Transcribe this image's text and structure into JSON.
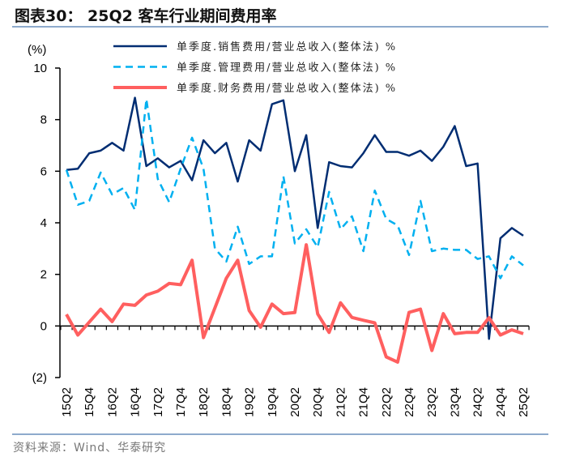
{
  "title": "图表30：  25Q2 客车行业期间费用率",
  "source": "资料来源：Wind、华泰研究",
  "colors": {
    "rule": "#8eaacc",
    "selling": "#002d72",
    "admin": "#00b0f0",
    "financial": "#ff5f5f"
  },
  "chart_data": {
    "type": "line",
    "title": "25Q2 客车行业期间费用率",
    "ylabel": "(%)",
    "ylim": [
      -2,
      10
    ],
    "yticks": [
      10,
      8,
      6,
      4,
      2,
      0,
      -2
    ],
    "ytick_labels": [
      "10",
      "8",
      "6",
      "4",
      "2",
      "0",
      "(2)"
    ],
    "grid": false,
    "legend_position": "top",
    "x": [
      "15Q2",
      "15Q3",
      "15Q4",
      "16Q1",
      "16Q2",
      "16Q3",
      "16Q4",
      "17Q1",
      "17Q2",
      "17Q3",
      "17Q4",
      "18Q1",
      "18Q2",
      "18Q3",
      "18Q4",
      "19Q1",
      "19Q2",
      "19Q3",
      "19Q4",
      "20Q1",
      "20Q2",
      "20Q3",
      "20Q4",
      "21Q1",
      "21Q2",
      "21Q3",
      "21Q4",
      "22Q1",
      "22Q2",
      "22Q3",
      "22Q4",
      "23Q1",
      "23Q2",
      "23Q3",
      "23Q4",
      "24Q1",
      "24Q2",
      "24Q3",
      "24Q4",
      "25Q1",
      "25Q2"
    ],
    "xtick_labels": [
      "15Q2",
      "15Q4",
      "16Q2",
      "16Q4",
      "17Q2",
      "17Q4",
      "18Q2",
      "18Q4",
      "19Q2",
      "19Q4",
      "20Q2",
      "20Q4",
      "21Q2",
      "21Q4",
      "22Q2",
      "22Q4",
      "23Q2",
      "23Q4",
      "24Q2",
      "24Q4",
      "25Q2"
    ],
    "series": [
      {
        "name": "单季度.销售费用/营业总收入(整体法) %",
        "style": "solid",
        "values": [
          6.05,
          6.1,
          6.7,
          6.8,
          7.1,
          6.8,
          8.85,
          6.2,
          6.5,
          6.15,
          6.4,
          5.65,
          7.2,
          6.7,
          7.1,
          5.6,
          7.2,
          6.8,
          8.6,
          8.75,
          6.0,
          7.4,
          3.8,
          6.35,
          6.2,
          6.15,
          6.7,
          7.4,
          6.75,
          6.75,
          6.6,
          6.8,
          6.4,
          6.95,
          7.75,
          6.2,
          6.3,
          -0.5,
          3.4,
          3.8,
          3.5
        ]
      },
      {
        "name": "单季度.管理费用/营业总收入(整体法) %",
        "style": "dashed",
        "values": [
          6.05,
          4.7,
          4.85,
          5.95,
          5.1,
          5.35,
          4.5,
          8.8,
          5.7,
          4.8,
          6.1,
          7.3,
          6.1,
          3.0,
          2.5,
          3.85,
          2.4,
          2.7,
          2.7,
          5.8,
          3.2,
          3.75,
          3.05,
          5.2,
          3.75,
          4.25,
          2.9,
          5.25,
          4.15,
          3.9,
          2.75,
          4.85,
          2.9,
          3.0,
          2.95,
          2.95,
          2.6,
          2.7,
          1.85,
          2.7,
          2.35
        ]
      },
      {
        "name": "单季度.财务费用/营业总收入(整体法) %",
        "style": "solid-thick",
        "values": [
          0.45,
          -0.35,
          0.15,
          0.65,
          0.17,
          0.85,
          0.8,
          1.2,
          1.35,
          1.65,
          1.6,
          2.55,
          -0.45,
          0.7,
          1.85,
          2.55,
          0.6,
          -0.05,
          0.85,
          0.48,
          0.52,
          3.15,
          0.47,
          -0.25,
          0.9,
          0.33,
          0.22,
          0.12,
          -1.2,
          -1.4,
          0.53,
          0.65,
          -0.95,
          0.48,
          -0.3,
          -0.25,
          -0.25,
          0.32,
          -0.35,
          -0.15,
          -0.3
        ]
      }
    ]
  }
}
